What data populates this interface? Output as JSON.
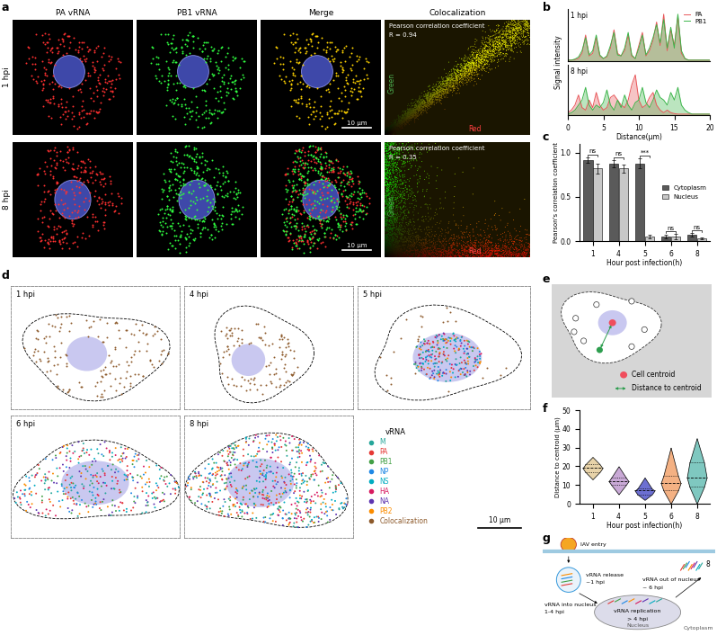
{
  "panel_labels": [
    "a",
    "b",
    "c",
    "d",
    "e",
    "f",
    "g"
  ],
  "a": {
    "columns": [
      "PA vRNA",
      "PB1 vRNA",
      "Merge",
      "Colocalization"
    ],
    "rows": [
      {
        "label": "1 hpi",
        "r": "R = 0.94"
      },
      {
        "label": "8 hpi",
        "r": "R = 0.35"
      }
    ],
    "coloc_title": "Pearson correlation coefficient",
    "coloc_axes": [
      "Green",
      "Red"
    ],
    "scale_bar": "10 μm"
  },
  "chart_data": [
    {
      "type": "line",
      "xlabel": "Distance(μm)",
      "ylabel": "Signal intensity",
      "x": [
        0,
        0.5,
        1,
        1.5,
        2,
        2.5,
        3,
        3.5,
        4,
        4.5,
        5,
        5.5,
        6,
        6.5,
        7,
        7.5,
        8,
        8.5,
        9,
        9.5,
        10,
        10.5,
        11,
        11.5,
        12,
        12.5,
        13,
        13.5,
        14,
        14.5,
        15,
        15.5,
        16,
        16.5,
        17,
        17.5,
        18,
        18.5,
        19,
        19.5,
        20
      ],
      "xlim": [
        0,
        20
      ],
      "xticks": [
        0,
        5,
        10,
        15,
        20
      ],
      "ylim": [
        0,
        1
      ],
      "tick_labels": "x",
      "legend": "upper right",
      "subplots": [
        {
          "label": "1 hpi",
          "series": [
            {
              "name": "PA",
              "color": "#e8575a",
              "values": [
                0.02,
                0.02,
                0.03,
                0.05,
                0.15,
                0.5,
                0.1,
                0.15,
                0.45,
                0.1,
                0.05,
                0.08,
                0.25,
                0.6,
                0.15,
                0.1,
                0.2,
                0.5,
                0.1,
                0.05,
                0.3,
                0.55,
                0.1,
                0.2,
                0.4,
                0.75,
                0.3,
                0.9,
                0.2,
                0.6,
                0.3,
                0.85,
                0.15,
                0.05,
                0.02,
                0.02,
                0.02,
                0.02,
                0.02,
                0.02,
                0.02
              ]
            },
            {
              "name": "PB1",
              "color": "#3cb54a",
              "values": [
                0.02,
                0.02,
                0.04,
                0.08,
                0.2,
                0.45,
                0.12,
                0.2,
                0.5,
                0.12,
                0.05,
                0.1,
                0.3,
                0.55,
                0.12,
                0.1,
                0.25,
                0.55,
                0.12,
                0.05,
                0.25,
                0.5,
                0.12,
                0.25,
                0.45,
                0.7,
                0.35,
                0.8,
                0.25,
                0.65,
                0.25,
                0.9,
                0.2,
                0.05,
                0.02,
                0.02,
                0.02,
                0.02,
                0.02,
                0.02,
                0.02
              ]
            }
          ]
        },
        {
          "label": "8 hpi",
          "series": [
            {
              "name": "PA",
              "color": "#e8575a",
              "values": [
                0.05,
                0.1,
                0.2,
                0.4,
                0.15,
                0.1,
                0.3,
                0.15,
                0.45,
                0.2,
                0.1,
                0.15,
                0.35,
                0.4,
                0.3,
                0.2,
                0.15,
                0.3,
                0.6,
                0.8,
                0.3,
                0.15,
                0.2,
                0.35,
                0.45,
                0.2,
                0.1,
                0.05,
                0.1,
                0.05,
                0.03,
                0.02,
                0.02,
                0.02,
                0.02,
                0.02,
                0.02,
                0.02,
                0.02,
                0.02,
                0.02
              ]
            },
            {
              "name": "PB1",
              "color": "#3cb54a",
              "values": [
                0.02,
                0.05,
                0.1,
                0.2,
                0.3,
                0.55,
                0.2,
                0.1,
                0.2,
                0.15,
                0.25,
                0.5,
                0.2,
                0.1,
                0.3,
                0.15,
                0.4,
                0.2,
                0.1,
                0.25,
                0.3,
                0.55,
                0.25,
                0.15,
                0.3,
                0.5,
                0.35,
                0.3,
                0.2,
                0.45,
                0.3,
                0.55,
                0.2,
                0.1,
                0.05,
                0.02,
                0.02,
                0.02,
                0.02,
                0.02,
                0.02
              ]
            }
          ]
        }
      ]
    },
    {
      "type": "bar",
      "xlabel": "Hour post infection(h)",
      "ylabel": "Pearson's correlation coefficient",
      "categories": [
        "1",
        "4",
        "5",
        "6",
        "8"
      ],
      "series": [
        {
          "name": "Cytoplasm",
          "color": "#5a5a5a",
          "values": [
            0.92,
            0.88,
            0.88,
            0.05,
            0.07
          ],
          "errors": [
            0.03,
            0.04,
            0.06,
            0.02,
            0.02
          ]
        },
        {
          "name": "Nucleus",
          "color": "#c8c8c8",
          "values": [
            0.82,
            0.82,
            0.05,
            0.05,
            0.03
          ],
          "errors": [
            0.06,
            0.05,
            0.02,
            0.03,
            0.01
          ]
        }
      ],
      "annotations": [
        "ns",
        "ns",
        "***",
        "ns",
        "ns"
      ],
      "ylim": [
        0,
        1.1
      ],
      "yticks": [
        {
          "value": 0,
          "label": "0.0"
        },
        {
          "value": 0.5,
          "label": "0.5"
        },
        {
          "value": 1,
          "label": "1.0"
        }
      ],
      "legend": "center right"
    },
    {
      "type": "violin",
      "xlabel": "Hour post infection(h)",
      "ylabel": "Distance to centroid (μm)",
      "categories": [
        "1",
        "4",
        "5",
        "6",
        "8"
      ],
      "colors": [
        "#e8d3a9",
        "#c9a9d6",
        "#6c6fd1",
        "#f4b183",
        "#7fc8c0"
      ],
      "stats": {
        "min": [
          13,
          5,
          2,
          0,
          0
        ],
        "q1": [
          17,
          10,
          5,
          7,
          9
        ],
        "median": [
          19,
          12,
          7,
          11,
          14
        ],
        "q3": [
          21,
          14,
          8,
          15,
          22
        ],
        "max": [
          25,
          20,
          14,
          30,
          35
        ]
      },
      "ylim": [
        0,
        50
      ],
      "yticks": [
        0,
        10,
        20,
        30,
        40,
        50
      ]
    }
  ],
  "d": {
    "panels": [
      "1 hpi",
      "4 hpi",
      "5 hpi",
      "6 hpi",
      "8 hpi"
    ],
    "legend_title": "vRNA",
    "legend": "center left",
    "scale_bar": "10 μm",
    "series": [
      {
        "name": "M",
        "color": "#26a69a"
      },
      {
        "name": "PA",
        "color": "#e53935"
      },
      {
        "name": "PB1",
        "color": "#43a047"
      },
      {
        "name": "NP",
        "color": "#1e88e5"
      },
      {
        "name": "NS",
        "color": "#00acc1"
      },
      {
        "name": "HA",
        "color": "#d81b60"
      },
      {
        "name": "NA",
        "color": "#5e35b1"
      },
      {
        "name": "PB2",
        "color": "#fb8c00"
      },
      {
        "name": "Colocalization",
        "color": "#8d5a2b"
      }
    ]
  },
  "e": {
    "legend_items": [
      "Cell centroid",
      "Distance to centroid"
    ]
  },
  "g": {
    "entry": "IAV entry",
    "release": [
      "vRNA release",
      "~1 hpi"
    ],
    "import": [
      "vRNA into nucleus",
      "1-4 hpi"
    ],
    "replication": [
      "vRNA replication",
      "> 4 hpi"
    ],
    "export": [
      "vRNA out of nucleus",
      "~ 6 hpi"
    ],
    "count": "8",
    "nucleus": "Nucleus",
    "cytoplasm": "Cytoplasm"
  }
}
